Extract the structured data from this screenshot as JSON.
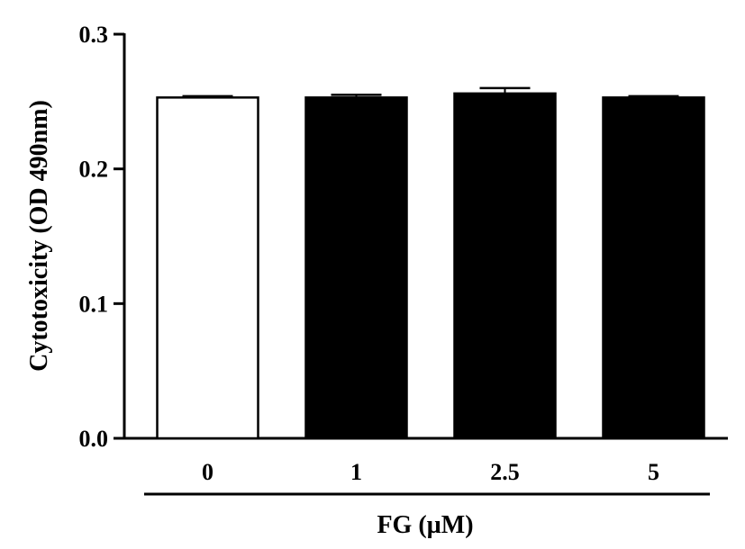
{
  "chart_data": {
    "type": "bar",
    "categories": [
      "0",
      "1",
      "2.5",
      "5"
    ],
    "values": [
      0.253,
      0.253,
      0.256,
      0.253
    ],
    "errors": [
      0.001,
      0.002,
      0.004,
      0.001
    ],
    "bar_colors": [
      "#ffffff",
      "#000000",
      "#000000",
      "#000000"
    ],
    "ylabel": "Cytotoxicity (OD 490nm)",
    "xlabel": "FG (µM)",
    "ylim": [
      0,
      0.3
    ],
    "yticks": [
      "0.0",
      "0.1",
      "0.2",
      "0.3"
    ],
    "grid": false
  }
}
